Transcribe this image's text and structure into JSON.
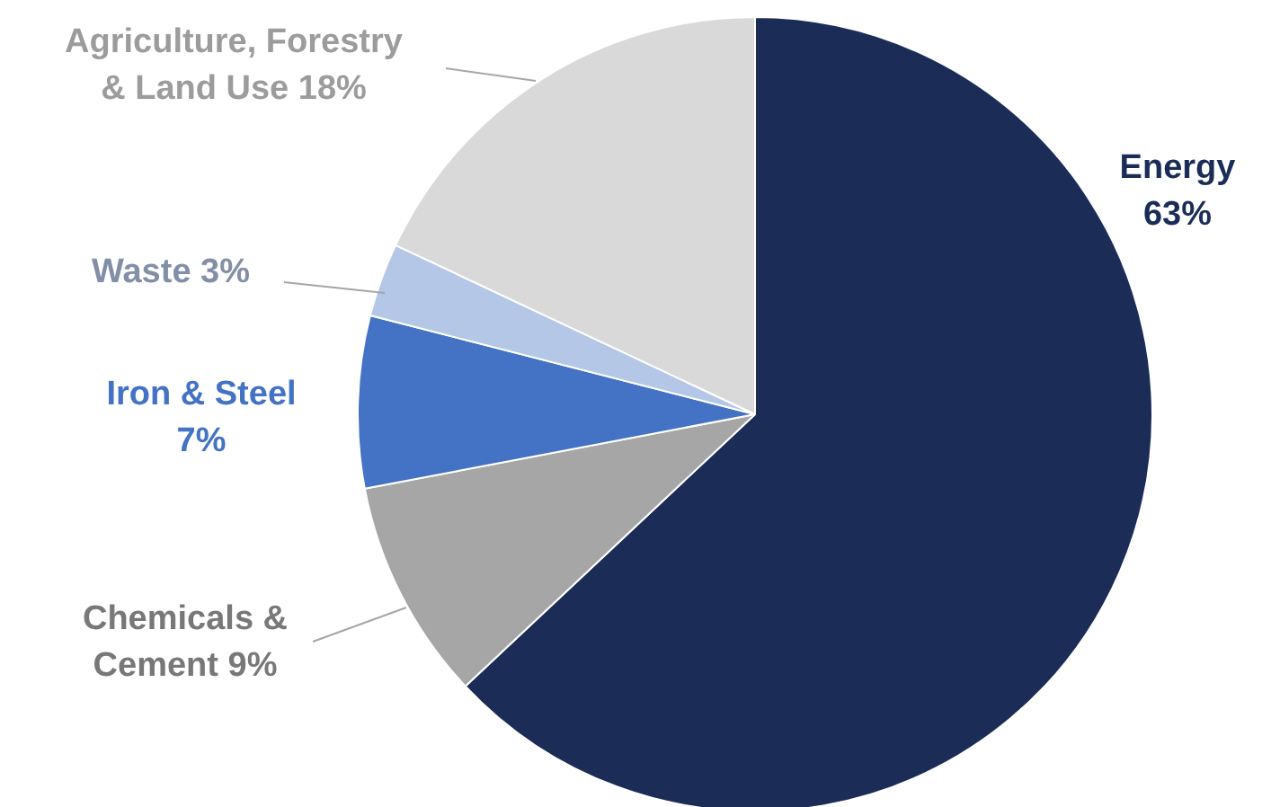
{
  "chart_data": {
    "type": "pie",
    "categories": [
      "Energy",
      "Chemicals & Cement",
      "Iron & Steel",
      "Waste",
      "Agriculture, Forestry & Land Use"
    ],
    "values": [
      63,
      9,
      7,
      3,
      18
    ],
    "value_labels": [
      "63%",
      "9%",
      "7%",
      "3%",
      "18%"
    ],
    "colors": [
      "#1b2d57",
      "#a6a6a6",
      "#4472c4",
      "#b4c7e7",
      "#d9d9d9"
    ],
    "legend": false
  }
}
